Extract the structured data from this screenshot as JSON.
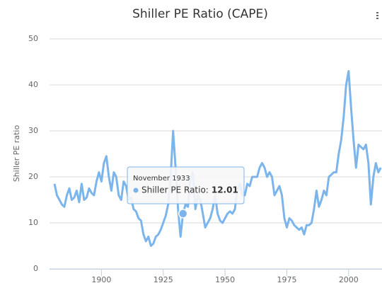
{
  "chart_data": {
    "type": "line",
    "title": "Shiller PE Ratio (CAPE)",
    "y_axis_label": "Shiller PE ratio",
    "x": [
      1881,
      1882,
      1883,
      1884,
      1885,
      1886,
      1887,
      1888,
      1889,
      1890,
      1891,
      1892,
      1893,
      1894,
      1895,
      1896,
      1897,
      1898,
      1899,
      1900,
      1901,
      1902,
      1903,
      1904,
      1905,
      1906,
      1907,
      1908,
      1909,
      1910,
      1911,
      1912,
      1913,
      1914,
      1915,
      1916,
      1917,
      1918,
      1919,
      1920,
      1921,
      1922,
      1923,
      1924,
      1925,
      1926,
      1927,
      1928,
      1929,
      1930,
      1931,
      1932,
      1933,
      1934,
      1935,
      1936,
      1937,
      1938,
      1939,
      1940,
      1941,
      1942,
      1943,
      1944,
      1945,
      1946,
      1947,
      1948,
      1949,
      1950,
      1951,
      1952,
      1953,
      1954,
      1955,
      1956,
      1957,
      1958,
      1959,
      1960,
      1961,
      1962,
      1963,
      1964,
      1965,
      1966,
      1967,
      1968,
      1969,
      1970,
      1971,
      1972,
      1973,
      1974,
      1975,
      1976,
      1977,
      1978,
      1979,
      1980,
      1981,
      1982,
      1983,
      1984,
      1985,
      1986,
      1987,
      1988,
      1989,
      1990,
      1991,
      1992,
      1993,
      1994,
      1995,
      1996,
      1997,
      1998,
      1999,
      2000,
      2001,
      2002,
      2003,
      2004,
      2005,
      2006,
      2007,
      2008,
      2009,
      2010,
      2011,
      2012,
      2013
    ],
    "series": [
      {
        "color": "#7cb5ec",
        "values": [
          18.5,
          16,
          15,
          14,
          13.5,
          16,
          17.5,
          15,
          15.5,
          17,
          14.5,
          18.5,
          15,
          15.5,
          17.5,
          16.5,
          16,
          19,
          21,
          19,
          23,
          24.5,
          20,
          17,
          21,
          20,
          16,
          15,
          19,
          18,
          15,
          15.5,
          13,
          12.5,
          11,
          10.5,
          7.5,
          6,
          7,
          5,
          5.5,
          7,
          7.5,
          8.5,
          10,
          11.5,
          14,
          20,
          30,
          22,
          13,
          7,
          12.01,
          14,
          13.5,
          20,
          21,
          13,
          16,
          15,
          12,
          9,
          10,
          11,
          13,
          16,
          12,
          10.5,
          10,
          11,
          12,
          12.5,
          12,
          13,
          17.5,
          18.5,
          16,
          16,
          18.5,
          18,
          20,
          20,
          20,
          22,
          23,
          22,
          20,
          21,
          20,
          16,
          17,
          18,
          16,
          11,
          9,
          11,
          10.5,
          9.5,
          9,
          8.5,
          9,
          7.5,
          9.5,
          9.5,
          10,
          13,
          17,
          13.5,
          15,
          17,
          16,
          20,
          20.5,
          21,
          21,
          25,
          28,
          33,
          40,
          43,
          35,
          28,
          22,
          27,
          26.5,
          26,
          27,
          23,
          14,
          20,
          23,
          21,
          22
        ]
      }
    ],
    "xlim": [
      1879,
      2013.5
    ],
    "xticks": [
      1900,
      1925,
      1950,
      1975,
      2000
    ],
    "ylim": [
      0,
      50
    ],
    "yticks": [
      0,
      10,
      20,
      30,
      40,
      50
    ],
    "grid": true,
    "tooltip": {
      "header": "November 1933",
      "label": "Shiller PE Ratio:",
      "point": 52
    }
  }
}
